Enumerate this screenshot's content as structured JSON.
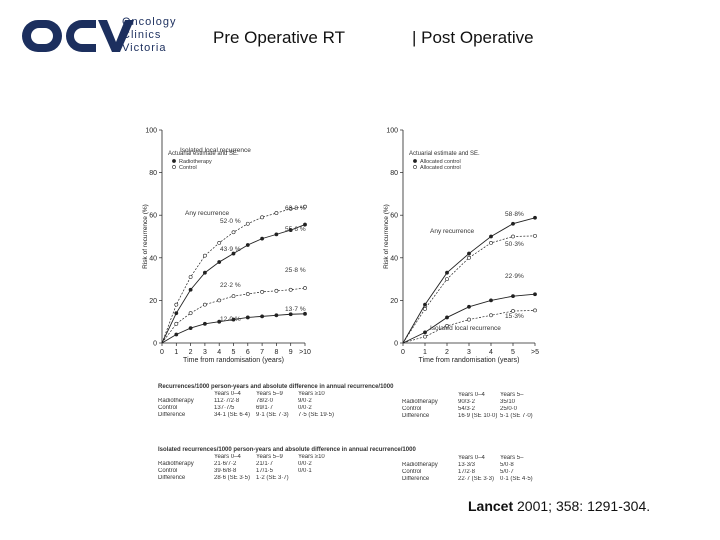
{
  "header": {
    "logo_text": [
      "Oncology",
      "Clinics",
      "Victoria"
    ],
    "left_title": "Pre Operative RT",
    "right_title": "| Post Operative"
  },
  "citation": {
    "journal": "Lancet",
    "rest": " 2001; 358: 1291-304."
  },
  "colors": {
    "brand": "#1c2f5e",
    "line": "#222222",
    "grid": "#cccccc"
  },
  "chart_data": [
    {
      "type": "line",
      "panel": "pre-operative",
      "xlabel": "Time from randomisation (years)",
      "ylabel": "Risk of recurrence (%)",
      "ylim": [
        0,
        100
      ],
      "yticks": [
        0,
        20,
        40,
        60,
        80,
        100
      ],
      "xticks": [
        "0",
        "1",
        "2",
        "3",
        "4",
        "5",
        "6",
        "7",
        "8",
        "9",
        ">10"
      ],
      "legend_title": "Actuarial estimate and SE.",
      "legend": [
        "Radiotherapy",
        "Control"
      ],
      "series": [
        {
          "name": "Radiotherapy",
          "group": "any",
          "x": [
            0,
            1,
            2,
            3,
            4,
            5,
            6,
            7,
            8,
            9,
            10
          ],
          "y": [
            0,
            14,
            25,
            33,
            38,
            42,
            46,
            49,
            51,
            53,
            55.6
          ]
        },
        {
          "name": "Control",
          "group": "any",
          "x": [
            0,
            1,
            2,
            3,
            4,
            5,
            6,
            7,
            8,
            9,
            10
          ],
          "y": [
            0,
            18,
            31,
            41,
            47,
            52,
            56,
            59,
            61,
            63,
            64
          ]
        },
        {
          "name": "Radiotherapy",
          "group": "local",
          "x": [
            0,
            1,
            2,
            3,
            4,
            5,
            6,
            7,
            8,
            9,
            10
          ],
          "y": [
            0,
            4,
            7,
            9,
            10,
            11,
            12,
            12.5,
            13,
            13.5,
            13.7
          ]
        },
        {
          "name": "Control",
          "group": "local",
          "x": [
            0,
            1,
            2,
            3,
            4,
            5,
            6,
            7,
            8,
            9,
            10
          ],
          "y": [
            0,
            9,
            14,
            18,
            20,
            22,
            23,
            24,
            24.5,
            25,
            25.8
          ]
        }
      ],
      "annotations": [
        "Any recurrence",
        "Isolated local recurrence",
        "52·0 %",
        "43·9 %",
        "22·2 %",
        "12·0 %",
        "63·8 %",
        "55·6 %",
        "25·8 %",
        "13·7 %"
      ]
    },
    {
      "type": "line",
      "panel": "post-operative",
      "xlabel": "Time from randomisation (years)",
      "ylabel": "Risk of recurrence (%)",
      "ylim": [
        0,
        100
      ],
      "yticks": [
        0,
        20,
        40,
        60,
        80,
        100
      ],
      "xticks": [
        "0",
        "1",
        "2",
        "3",
        "4",
        "5",
        ">5"
      ],
      "legend_title": "Actuarial estimate and SE.",
      "legend": [
        "Allocated control",
        "Allocated control"
      ],
      "series": [
        {
          "name": "any-a",
          "group": "any",
          "x": [
            0,
            1,
            2,
            3,
            4,
            5,
            6
          ],
          "y": [
            0,
            18,
            33,
            42,
            50,
            56,
            58.8
          ]
        },
        {
          "name": "any-b",
          "group": "any",
          "x": [
            0,
            1,
            2,
            3,
            4,
            5,
            6
          ],
          "y": [
            0,
            16,
            30,
            40,
            47,
            50,
            50.3
          ]
        },
        {
          "name": "local-a",
          "group": "local",
          "x": [
            0,
            1,
            2,
            3,
            4,
            5,
            6
          ],
          "y": [
            0,
            5,
            12,
            17,
            20,
            22,
            22.9
          ]
        },
        {
          "name": "local-b",
          "group": "local",
          "x": [
            0,
            1,
            2,
            3,
            4,
            5,
            6
          ],
          "y": [
            0,
            3,
            8,
            11,
            13,
            15,
            15.3
          ]
        }
      ],
      "annotations": [
        "Any recurrence",
        "Isolated local recurrence",
        "58·8%",
        "50·3%",
        "22·9%",
        "15·3%"
      ]
    }
  ],
  "tables": {
    "t1": {
      "title": "Recurrences/1000 person-years and absolute difference in annual recurrence/1000",
      "left_header": [
        "",
        "Years 0–4",
        "Years 5–9",
        "Years ≥10"
      ],
      "left_rows": [
        [
          "Radiotherapy",
          "112·7/2·8",
          "78/2·0",
          "9/0·2"
        ],
        [
          "Control",
          "137·7/5",
          "69/1·7",
          "0/0·2"
        ],
        [
          "Difference",
          "34·1 (SE 6·4)",
          "9·1 (SE 7·3)",
          "7·5 (SE 19·5)"
        ]
      ],
      "right_header": [
        "",
        "Years 0–4",
        "Years 5–"
      ],
      "right_rows": [
        [
          "Radiotherapy",
          "90/3·2",
          "35/10"
        ],
        [
          "Control",
          "54/3·2",
          "25/0·0"
        ],
        [
          "Difference",
          "16·9 (SE 10·0)",
          "5·1 (SE 7·0)"
        ]
      ]
    },
    "t2": {
      "title": "Isolated recurrences/1000 person-years and absolute difference in annual recurrence/1000",
      "left_header": [
        "",
        "Years 0–4",
        "Years 5–9",
        "Years ≥10"
      ],
      "left_rows": [
        [
          "Radiotherapy",
          "21·6/7·2",
          "21/1·7",
          "0/0·2"
        ],
        [
          "Control",
          "39·6/8·8",
          "17/1·5",
          "0/0·1"
        ],
        [
          "Difference",
          "28·6 (SE 3·5)",
          "1·2 (SE 3·7)",
          ""
        ]
      ],
      "right_header": [
        "",
        "Years 0–4",
        "Years 5–"
      ],
      "right_rows": [
        [
          "Radiotherapy",
          "13·3/3",
          "5/0·8"
        ],
        [
          "Control",
          "17/2·8",
          "5/0·7"
        ],
        [
          "Difference",
          "22·7 (SE 3·3)",
          "0·1 (SE 4·5)"
        ]
      ]
    }
  }
}
